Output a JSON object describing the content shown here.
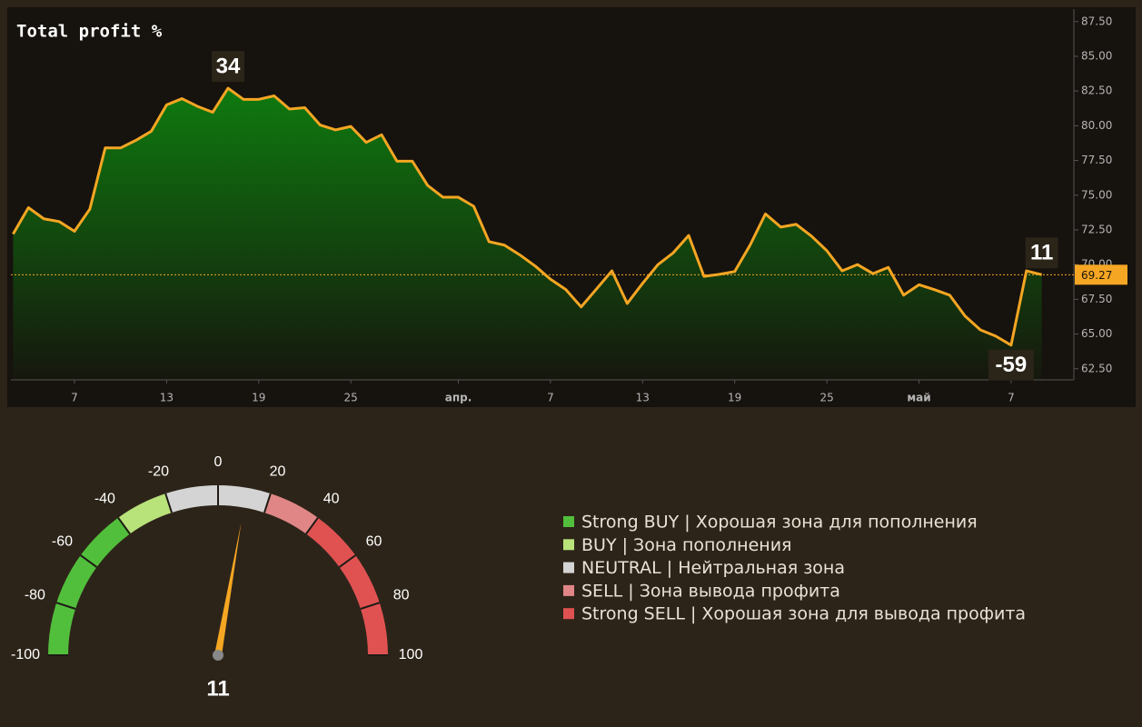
{
  "chart_data": [
    {
      "type": "area-line",
      "title": "Total profit %",
      "color": "#f5a623",
      "fill_color": "#0f7a0f",
      "categories": [
        null,
        null,
        null,
        null,
        "7",
        null,
        null,
        null,
        null,
        null,
        "13",
        null,
        null,
        null,
        null,
        null,
        "19",
        null,
        null,
        null,
        null,
        null,
        "25",
        null,
        null,
        null,
        null,
        null,
        null,
        "апр.",
        null,
        null,
        null,
        null,
        null,
        "7",
        null,
        null,
        null,
        null,
        null,
        "13",
        null,
        null,
        null,
        null,
        null,
        "19",
        null,
        null,
        null,
        null,
        null,
        "25",
        null,
        null,
        null,
        null,
        null,
        "май",
        null,
        null,
        null,
        null,
        null,
        "7",
        null,
        null
      ],
      "values": [
        72.2,
        74.1,
        73.3,
        73.1,
        72.4,
        74.0,
        78.4,
        78.4,
        78.95,
        79.6,
        81.5,
        81.95,
        81.4,
        80.97,
        82.7,
        81.9,
        81.9,
        82.15,
        81.2,
        81.3,
        80.05,
        79.7,
        79.95,
        78.8,
        79.35,
        77.45,
        77.45,
        75.7,
        74.85,
        74.85,
        74.2,
        71.65,
        71.4,
        70.7,
        69.9,
        68.95,
        68.2,
        66.95,
        68.25,
        69.55,
        67.2,
        68.65,
        70.0,
        70.85,
        72.1,
        69.15,
        69.3,
        69.5,
        71.4,
        73.65,
        72.7,
        72.9,
        72.05,
        71.0,
        69.55,
        70.0,
        69.35,
        69.8,
        67.8,
        68.55,
        68.2,
        67.8,
        66.3,
        65.3,
        64.85,
        64.2,
        69.55,
        69.27
      ],
      "last_value": 69.27,
      "point_labels": [
        {
          "index": 14,
          "label": "34"
        },
        {
          "index": 67,
          "label": "11"
        },
        {
          "index": 65,
          "label": "-59"
        }
      ],
      "ylim": [
        61.7,
        88.4
      ],
      "yticks": [
        {
          "value": 62.5,
          "label": "62.50"
        },
        {
          "value": 65,
          "label": "65.00"
        },
        {
          "value": 67.5,
          "label": "67.50"
        },
        {
          "value": 70,
          "label": "70.00"
        },
        {
          "value": 72.5,
          "label": "72.50"
        },
        {
          "value": 75,
          "label": "75.00"
        },
        {
          "value": 77.5,
          "label": "77.50"
        },
        {
          "value": 80,
          "label": "80.00"
        },
        {
          "value": 82.5,
          "label": "82.50"
        },
        {
          "value": 85,
          "label": "85.00"
        },
        {
          "value": 87.5,
          "label": "87.50"
        }
      ]
    },
    {
      "type": "gauge",
      "value": 11,
      "needle_color": "#f5a623",
      "range": [
        -100,
        100
      ],
      "ticks": [
        -100,
        -80,
        -60,
        -40,
        -20,
        0,
        20,
        40,
        60,
        80,
        100
      ],
      "bands": [
        {
          "name": "Strong BUY | Хорошая зона для пополнения",
          "color": "#52bf3c",
          "from": -100,
          "to": -40
        },
        {
          "name": "BUY | Зона пополнения",
          "color": "#b8e27a",
          "from": -40,
          "to": -20
        },
        {
          "name": "NEUTRAL | Нейтральная зона",
          "color": "#d4d4d4",
          "from": -20,
          "to": 20
        },
        {
          "name": "SELL | Зона вывода профита",
          "color": "#e08686",
          "from": 20,
          "to": 40
        },
        {
          "name": "Strong SELL | Хорошая зона для вывода профита",
          "color": "#e05252",
          "from": 40,
          "to": 100
        }
      ]
    }
  ]
}
